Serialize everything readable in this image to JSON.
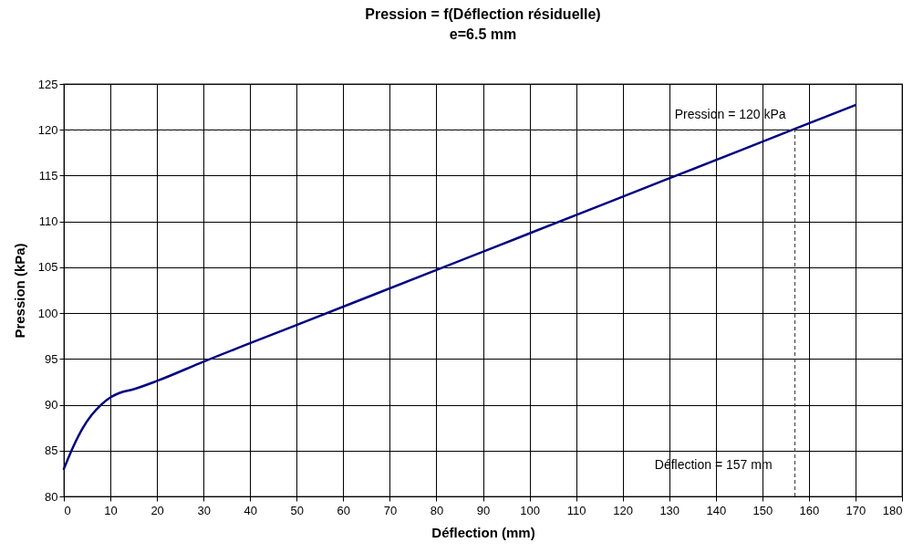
{
  "chart_data": {
    "type": "line",
    "title": "Pression = f(Déflection résiduelle)",
    "subtitle": "e=6.5 mm",
    "xlabel": "Déflection (mm)",
    "ylabel": "Pression (kPa)",
    "x": [
      0,
      2,
      4,
      6,
      8,
      10,
      12,
      15,
      20,
      30,
      50,
      80,
      100,
      130,
      158,
      170
    ],
    "series": [
      {
        "color": "#000080",
        "values": [
          83,
          85.4,
          87.4,
          88.9,
          90.0,
          90.8,
          91.3,
          91.7,
          92.6,
          94.7,
          98.7,
          104.7,
          108.7,
          114.7,
          120.3,
          122.7
        ]
      }
    ],
    "xlim": [
      0,
      180
    ],
    "xticks": [
      0,
      10,
      20,
      30,
      40,
      50,
      60,
      70,
      80,
      90,
      100,
      110,
      120,
      130,
      140,
      150,
      160,
      170,
      180
    ],
    "ylim": [
      80,
      125
    ],
    "yticks": [
      80,
      85,
      90,
      95,
      100,
      105,
      110,
      115,
      120,
      125
    ],
    "grid": true,
    "marker": "none",
    "line_style": "solid",
    "ref_lines": [
      {
        "axis": "y",
        "value": 120,
        "label": "Pression = 120 kPa",
        "line_style": "dashed"
      },
      {
        "axis": "x",
        "value": 157,
        "label": "Déflection = 157 mm",
        "line_style": "dashed"
      }
    ]
  }
}
